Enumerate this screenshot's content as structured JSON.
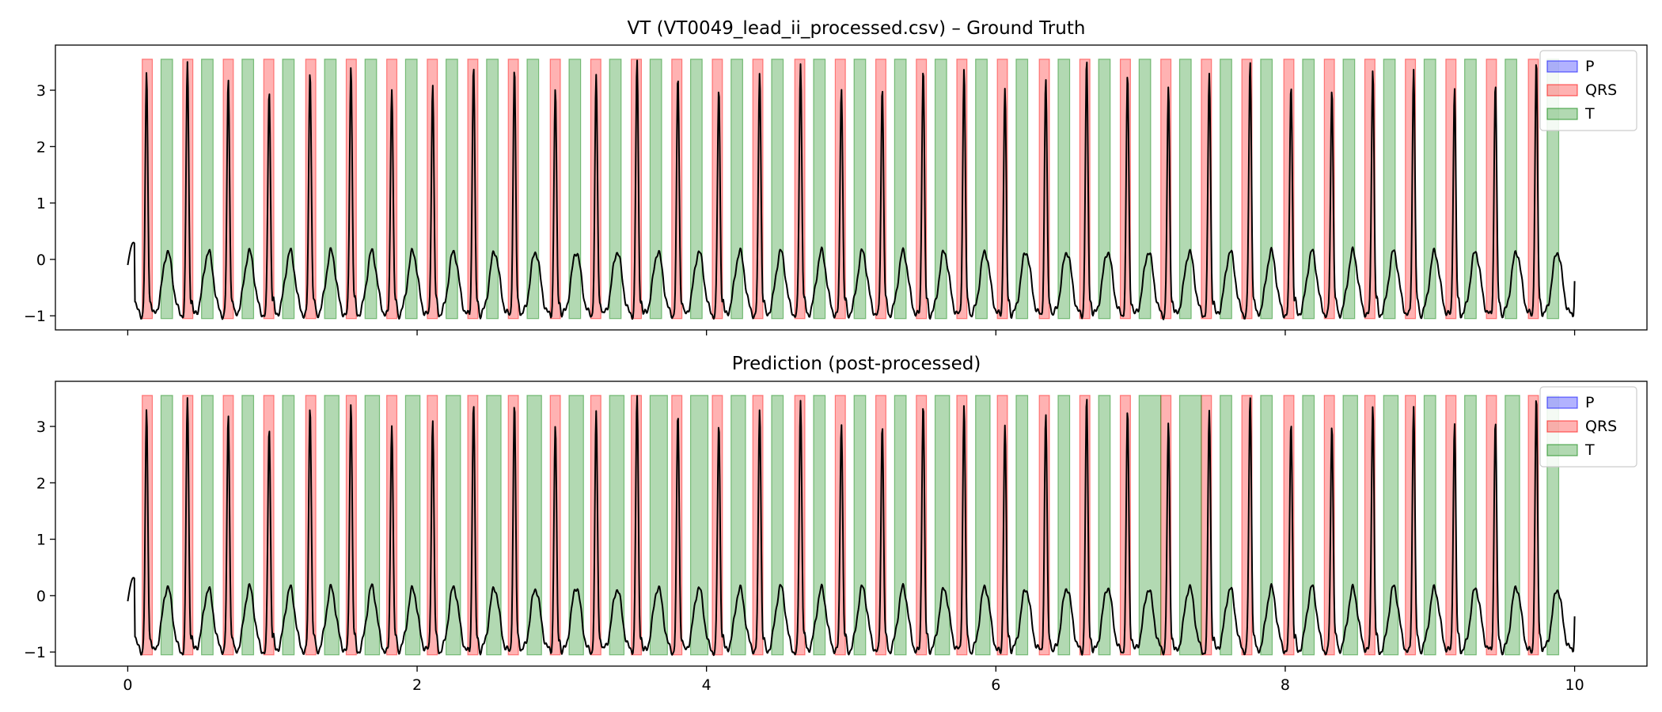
{
  "chart_data": [
    {
      "type": "line",
      "title": "VT (VT0049_lead_ii_processed.csv) – Ground Truth",
      "xlabel": "",
      "ylabel": "",
      "xlim": [
        -0.5,
        10.5
      ],
      "ylim": [
        -1.25,
        3.8
      ],
      "xticks": [
        0,
        2,
        4,
        6,
        8,
        10
      ],
      "xticklabels_shown": false,
      "yticks": [
        -1,
        0,
        1,
        2,
        3
      ],
      "ytick_labels": [
        "−1",
        "0",
        "1",
        "2",
        "3"
      ],
      "legend": {
        "position": "top-right",
        "entries": [
          "P",
          "QRS",
          "T"
        ]
      },
      "band_range": [
        -1.05,
        3.55
      ],
      "segments": {
        "P": [],
        "QRS": [
          [
            0.1,
            0.17
          ],
          [
            0.38,
            0.45
          ],
          [
            0.66,
            0.73
          ],
          [
            0.94,
            1.01
          ],
          [
            1.23,
            1.3
          ],
          [
            1.51,
            1.58
          ],
          [
            1.79,
            1.86
          ],
          [
            2.07,
            2.14
          ],
          [
            2.35,
            2.42
          ],
          [
            2.63,
            2.7
          ],
          [
            2.92,
            2.99
          ],
          [
            3.2,
            3.27
          ],
          [
            3.48,
            3.55
          ],
          [
            3.76,
            3.83
          ],
          [
            4.04,
            4.11
          ],
          [
            4.32,
            4.39
          ],
          [
            4.61,
            4.68
          ],
          [
            4.89,
            4.96
          ],
          [
            5.17,
            5.24
          ],
          [
            5.45,
            5.52
          ],
          [
            5.73,
            5.8
          ],
          [
            6.01,
            6.08
          ],
          [
            6.3,
            6.37
          ],
          [
            6.58,
            6.65
          ],
          [
            6.86,
            6.93
          ],
          [
            7.14,
            7.21
          ],
          [
            7.42,
            7.49
          ],
          [
            7.7,
            7.77
          ],
          [
            7.99,
            8.06
          ],
          [
            8.27,
            8.34
          ],
          [
            8.55,
            8.62
          ],
          [
            8.83,
            8.9
          ],
          [
            9.11,
            9.18
          ],
          [
            9.39,
            9.46
          ],
          [
            9.68,
            9.75
          ]
        ],
        "T": [
          [
            0.23,
            0.31
          ],
          [
            0.51,
            0.59
          ],
          [
            0.79,
            0.87
          ],
          [
            1.07,
            1.15
          ],
          [
            1.36,
            1.44
          ],
          [
            1.64,
            1.72
          ],
          [
            1.92,
            2.0
          ],
          [
            2.2,
            2.28
          ],
          [
            2.48,
            2.56
          ],
          [
            2.76,
            2.84
          ],
          [
            3.05,
            3.13
          ],
          [
            3.33,
            3.41
          ],
          [
            3.61,
            3.69
          ],
          [
            3.89,
            3.97
          ],
          [
            4.17,
            4.25
          ],
          [
            4.45,
            4.53
          ],
          [
            4.74,
            4.82
          ],
          [
            5.02,
            5.1
          ],
          [
            5.3,
            5.38
          ],
          [
            5.58,
            5.66
          ],
          [
            5.86,
            5.94
          ],
          [
            6.14,
            6.22
          ],
          [
            6.43,
            6.51
          ],
          [
            6.71,
            6.79
          ],
          [
            6.99,
            7.07
          ],
          [
            7.27,
            7.35
          ],
          [
            7.55,
            7.63
          ],
          [
            7.83,
            7.91
          ],
          [
            8.12,
            8.2
          ],
          [
            8.4,
            8.48
          ],
          [
            8.68,
            8.76
          ],
          [
            8.96,
            9.04
          ],
          [
            9.24,
            9.32
          ],
          [
            9.52,
            9.6
          ],
          [
            9.81,
            9.89
          ]
        ]
      }
    },
    {
      "type": "line",
      "title": "Prediction (post-processed)",
      "xlabel": "",
      "ylabel": "",
      "xlim": [
        -0.5,
        10.5
      ],
      "ylim": [
        -1.25,
        3.8
      ],
      "xticks": [
        0,
        2,
        4,
        6,
        8,
        10
      ],
      "xtick_labels": [
        "0",
        "2",
        "4",
        "6",
        "8",
        "10"
      ],
      "yticks": [
        -1,
        0,
        1,
        2,
        3
      ],
      "ytick_labels": [
        "−1",
        "0",
        "1",
        "2",
        "3"
      ],
      "legend": {
        "position": "top-right",
        "entries": [
          "P",
          "QRS",
          "T"
        ]
      },
      "band_range": [
        -1.05,
        3.55
      ],
      "segments": {
        "P": [],
        "QRS": [
          [
            0.1,
            0.17
          ],
          [
            0.38,
            0.45
          ],
          [
            0.66,
            0.73
          ],
          [
            0.94,
            1.01
          ],
          [
            1.23,
            1.3
          ],
          [
            1.51,
            1.58
          ],
          [
            1.79,
            1.86
          ],
          [
            2.07,
            2.14
          ],
          [
            2.35,
            2.42
          ],
          [
            2.63,
            2.7
          ],
          [
            2.92,
            2.99
          ],
          [
            3.2,
            3.27
          ],
          [
            3.48,
            3.55
          ],
          [
            3.76,
            3.83
          ],
          [
            4.04,
            4.11
          ],
          [
            4.32,
            4.39
          ],
          [
            4.61,
            4.68
          ],
          [
            4.89,
            4.96
          ],
          [
            5.17,
            5.24
          ],
          [
            5.45,
            5.52
          ],
          [
            5.73,
            5.8
          ],
          [
            6.01,
            6.08
          ],
          [
            6.3,
            6.37
          ],
          [
            6.58,
            6.65
          ],
          [
            6.86,
            6.93
          ],
          [
            7.14,
            7.21
          ],
          [
            7.42,
            7.49
          ],
          [
            7.7,
            7.77
          ],
          [
            7.99,
            8.06
          ],
          [
            8.27,
            8.34
          ],
          [
            8.55,
            8.62
          ],
          [
            8.83,
            8.9
          ],
          [
            9.11,
            9.18
          ],
          [
            9.39,
            9.46
          ],
          [
            9.68,
            9.75
          ]
        ],
        "T": [
          [
            0.23,
            0.31
          ],
          [
            0.51,
            0.59
          ],
          [
            0.79,
            0.87
          ],
          [
            1.07,
            1.15
          ],
          [
            1.36,
            1.46
          ],
          [
            1.64,
            1.74
          ],
          [
            1.92,
            2.02
          ],
          [
            2.2,
            2.3
          ],
          [
            2.48,
            2.58
          ],
          [
            2.76,
            2.86
          ],
          [
            3.05,
            3.15
          ],
          [
            3.33,
            3.43
          ],
          [
            3.61,
            3.73
          ],
          [
            3.89,
            4.01
          ],
          [
            4.17,
            4.27
          ],
          [
            4.45,
            4.53
          ],
          [
            4.74,
            4.82
          ],
          [
            5.02,
            5.1
          ],
          [
            5.3,
            5.38
          ],
          [
            5.58,
            5.68
          ],
          [
            5.86,
            5.96
          ],
          [
            6.14,
            6.22
          ],
          [
            6.43,
            6.51
          ],
          [
            6.71,
            6.79
          ],
          [
            6.99,
            7.14
          ],
          [
            7.27,
            7.42
          ],
          [
            7.55,
            7.63
          ],
          [
            7.83,
            7.91
          ],
          [
            8.12,
            8.2
          ],
          [
            8.4,
            8.5
          ],
          [
            8.68,
            8.78
          ],
          [
            8.96,
            9.04
          ],
          [
            9.24,
            9.32
          ],
          [
            9.52,
            9.62
          ],
          [
            9.81,
            9.89
          ]
        ]
      }
    }
  ],
  "signal": {
    "name": "ECG lead II",
    "duration_s": 10,
    "rr_interval_s": 0.2825,
    "first_r_peak_s": 0.13,
    "r_peak_mV": 3.25,
    "r_peak_variation_mV": 0.25,
    "t_wave_mV": 0.2,
    "baseline_min_mV": -1.0,
    "start_value_mV": -0.1
  },
  "colors": {
    "P_face": "#0000ff",
    "QRS_face": "#ff0000",
    "T_face": "#008000",
    "band_alpha": 0.3,
    "signal": "#000000",
    "axes": "#000000",
    "background": "#ffffff"
  }
}
